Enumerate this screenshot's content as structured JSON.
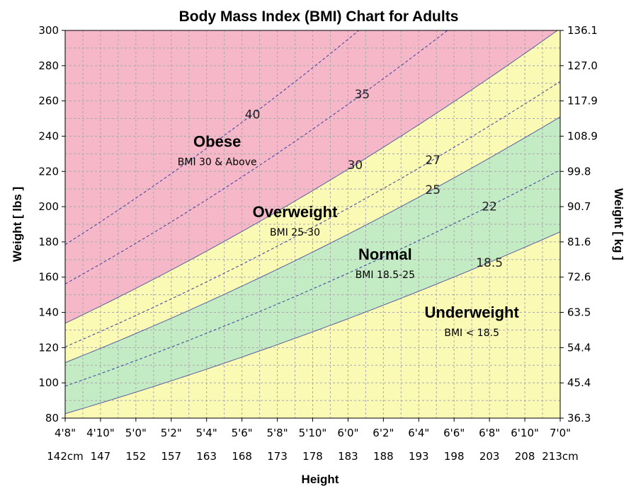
{
  "chart_data": {
    "type": "area",
    "title": "Body Mass Index (BMI) Chart for Adults",
    "xlabel": "Height",
    "ylabel_left": "Weight [ lbs ]",
    "ylabel_right": "Weight [ kg ]",
    "height_range_in": [
      56,
      84
    ],
    "ylim_lbs": [
      80,
      300
    ],
    "x_ticks": [
      {
        "in": 56,
        "ft": "4'8\"",
        "cm": "142cm"
      },
      {
        "in": 58,
        "ft": "4'10\"",
        "cm": "147"
      },
      {
        "in": 60,
        "ft": "5'0\"",
        "cm": "152"
      },
      {
        "in": 62,
        "ft": "5'2\"",
        "cm": "157"
      },
      {
        "in": 64,
        "ft": "5'4\"",
        "cm": "163"
      },
      {
        "in": 66,
        "ft": "5'6\"",
        "cm": "168"
      },
      {
        "in": 68,
        "ft": "5'8\"",
        "cm": "173"
      },
      {
        "in": 70,
        "ft": "5'10\"",
        "cm": "178"
      },
      {
        "in": 72,
        "ft": "6'0\"",
        "cm": "183"
      },
      {
        "in": 74,
        "ft": "6'2\"",
        "cm": "188"
      },
      {
        "in": 76,
        "ft": "6'4\"",
        "cm": "193"
      },
      {
        "in": 78,
        "ft": "6'6\"",
        "cm": "198"
      },
      {
        "in": 80,
        "ft": "6'8\"",
        "cm": "203"
      },
      {
        "in": 82,
        "ft": "6'10\"",
        "cm": "208"
      },
      {
        "in": 84,
        "ft": "7'0\"",
        "cm": "213cm"
      }
    ],
    "y_ticks_left": [
      "80",
      "100",
      "120",
      "140",
      "160",
      "180",
      "200",
      "220",
      "240",
      "260",
      "280",
      "300"
    ],
    "y_ticks_right": [
      "36.3",
      "45.4",
      "54.4",
      "63.5",
      "72.6",
      "81.6",
      "90.7",
      "99.8",
      "108.9",
      "117.9",
      "127.0",
      "136.1"
    ],
    "bmi_lines": [
      {
        "bmi": 18.5,
        "label": "18.5",
        "style": "solid",
        "label_at": 80
      },
      {
        "bmi": 22,
        "label": "22",
        "style": "dashed",
        "label_at": 80
      },
      {
        "bmi": 25,
        "label": "25",
        "style": "solid",
        "label_at": 76.8
      },
      {
        "bmi": 27,
        "label": "27",
        "style": "dashed",
        "label_at": 76.8
      },
      {
        "bmi": 30,
        "label": "30",
        "style": "solid",
        "label_at": 72.4
      },
      {
        "bmi": 35,
        "label": "35",
        "style": "dashed",
        "label_at": 72.8
      },
      {
        "bmi": 40,
        "label": "40",
        "style": "dashed",
        "label_at": 66.6
      }
    ],
    "categories": [
      {
        "name": "Obese",
        "range": "BMI 30 & Above",
        "bmi_min": 30,
        "bmi_max": 999,
        "color": "#f6b8c8",
        "label_in": 64.6,
        "label_lbs": 234
      },
      {
        "name": "Overweight",
        "range": "BMI 25-30",
        "bmi_min": 25,
        "bmi_max": 30,
        "color": "#fafab4",
        "label_in": 69,
        "label_lbs": 194
      },
      {
        "name": "Normal",
        "range": "BMI 18.5-25",
        "bmi_min": 18.5,
        "bmi_max": 25,
        "color": "#c4ecc4",
        "label_in": 74.1,
        "label_lbs": 170
      },
      {
        "name": "Underweight",
        "range": "BMI < 18.5",
        "bmi_min": 0,
        "bmi_max": 18.5,
        "color": "#fafab4",
        "label_in": 79,
        "label_lbs": 137
      }
    ],
    "grid": true
  }
}
